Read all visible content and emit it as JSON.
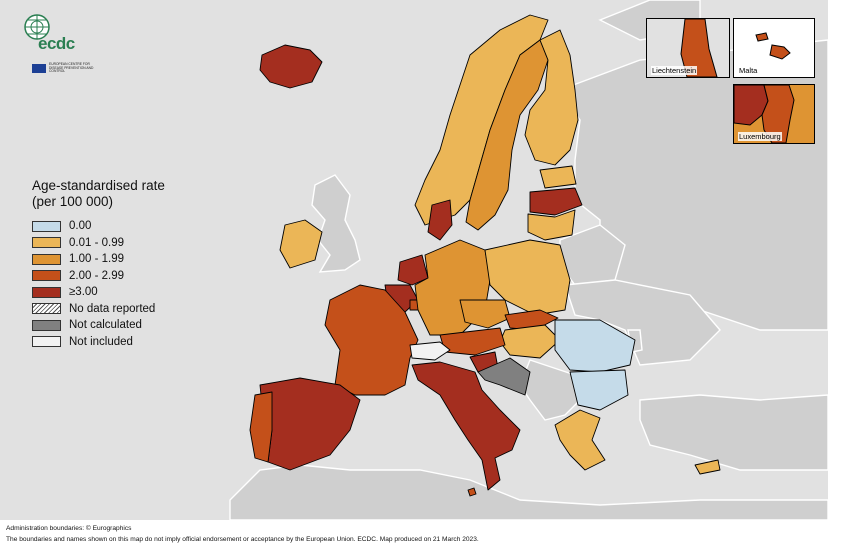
{
  "legend": {
    "title_line1": "Age-standardised rate",
    "title_line2": "(per 100 000)",
    "items": [
      {
        "label": "0.00",
        "color": "#c5dbe9"
      },
      {
        "label": "0.01 - 0.99",
        "color": "#ebb657"
      },
      {
        "label": "1.00 - 1.99",
        "color": "#de9433"
      },
      {
        "label": "2.00 - 2.99",
        "color": "#c4501a"
      },
      {
        "label": "≥3.00",
        "color": "#a42e1f"
      },
      {
        "label": "No data reported",
        "color": "hatched"
      },
      {
        "label": "Not calculated",
        "color": "#808080"
      },
      {
        "label": "Not included",
        "color": "#f2f2f2"
      }
    ]
  },
  "logo": {
    "brand": "ecdc",
    "org_name": "EUROPEAN CENTRE FOR DISEASE PREVENTION AND CONTROL"
  },
  "insets": {
    "liechtenstein": "Liechtenstein",
    "malta": "Malta",
    "luxembourg": "Luxembourg"
  },
  "footer": {
    "line1": "Administration boundaries: © Eurographics",
    "line2": "The boundaries and names shown on this map do not imply official endorsement or acceptance by the European Union. ECDC. Map produced on 21 March 2023."
  },
  "map_classes": {
    "Iceland": "≥3.00",
    "Norway": "0.01 - 0.99",
    "Sweden": "1.00 - 1.99",
    "Finland": "0.01 - 0.99",
    "Estonia": "0.01 - 0.99",
    "Latvia": "≥3.00",
    "Lithuania": "0.01 - 0.99",
    "Ireland": "0.01 - 0.99",
    "Denmark": "≥3.00",
    "Netherlands": "≥3.00",
    "Belgium": "≥3.00",
    "Luxembourg": "2.00 - 2.99",
    "Germany": "1.00 - 1.99",
    "Poland": "0.01 - 0.99",
    "Czechia": "1.00 - 1.99",
    "Slovakia": "2.00 - 2.99",
    "Hungary": "0.01 - 0.99",
    "Austria": "2.00 - 2.99",
    "Slovenia": "≥3.00",
    "Croatia": "Not calculated",
    "Romania": "0.00",
    "Bulgaria": "0.00",
    "Greece": "0.01 - 0.99",
    "Cyprus": "0.01 - 0.99",
    "Italy": "≥3.00",
    "Malta": "2.00 - 2.99",
    "France": "2.00 - 2.99",
    "Spain": "≥3.00",
    "Portugal": "2.00 - 2.99",
    "Liechtenstein": "2.00 - 2.99",
    "Switzerland": "Not included"
  }
}
